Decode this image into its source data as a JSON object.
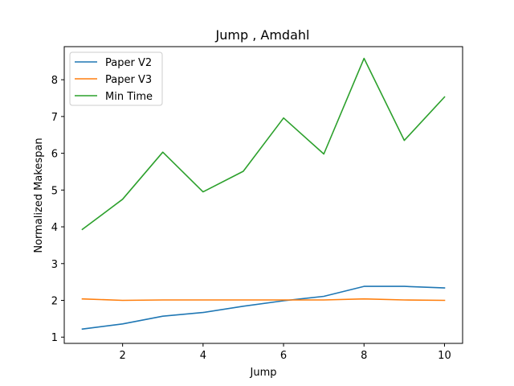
{
  "chart_data": {
    "type": "line",
    "title": "Jump , Amdahl",
    "xlabel": "Jump",
    "ylabel": "Normalized Makespan",
    "xlim": [
      0.55,
      10.45
    ],
    "ylim": [
      0.83,
      8.9
    ],
    "xticks": [
      2,
      4,
      6,
      8,
      10
    ],
    "yticks": [
      1,
      2,
      3,
      4,
      5,
      6,
      7,
      8
    ],
    "x": [
      1,
      2,
      3,
      4,
      5,
      6,
      7,
      8,
      9,
      10
    ],
    "grid": false,
    "legend_position": "upper left",
    "series": [
      {
        "name": "Paper V2",
        "color": "#1f77b4",
        "values": [
          1.22,
          1.36,
          1.57,
          1.67,
          1.84,
          1.99,
          2.11,
          2.38,
          2.38,
          2.34
        ]
      },
      {
        "name": "Paper V3",
        "color": "#ff7f0e",
        "values": [
          2.04,
          2.0,
          2.01,
          2.01,
          2.01,
          2.01,
          2.01,
          2.04,
          2.01,
          2.0
        ]
      },
      {
        "name": "Min Time",
        "color": "#2ca02c",
        "values": [
          3.93,
          4.75,
          6.03,
          4.95,
          5.51,
          6.96,
          5.98,
          8.58,
          6.35,
          7.53
        ]
      }
    ]
  }
}
